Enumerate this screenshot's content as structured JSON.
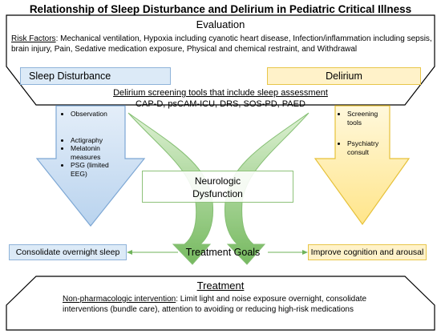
{
  "title": "Relationship of Sleep Disturbance and Delirium in Pediatric Critical Illness",
  "evaluation": {
    "heading": "Evaluation",
    "risk_label": "Risk Factors",
    "risk_text": ": Mechanical ventilation, Hypoxia including cyanotic heart disease, Infection/inflammation including sepsis, brain injury, Pain, Sedative medication exposure, Physical and chemical restraint, and Withdrawal"
  },
  "sleep_disturbance": {
    "label": "Sleep Disturbance",
    "bullets": [
      "Observation",
      "Actigraphy",
      "Melatonin measures",
      "PSG (limited EEG)"
    ],
    "color": "#dceaf7"
  },
  "delirium": {
    "label": "Delirium",
    "bullets": [
      "Screening tools",
      "Psychiatry consult"
    ],
    "color": "#fff2c9"
  },
  "screening": {
    "heading": "Delirium screening tools that include sleep assessment",
    "tools": "CAP-D, psCAM-ICU, DRS, SOS-PD, PAED"
  },
  "neurologic": {
    "line1": "Neurologic",
    "line2": "Dysfunction"
  },
  "treatment_goals": {
    "label": "Treatment Goals",
    "left": "Consolidate overnight sleep",
    "right": "Improve cognition and arousal"
  },
  "treatment": {
    "heading": "Treatment",
    "label": "Non-pharmacologic intervention",
    "text": ": Limit light and noise exposure overnight, consolidate interventions (bundle care), attention to avoiding or reducing high-risk medications"
  },
  "colors": {
    "blue_fill": "#d5e6f5",
    "blue_stroke": "#7da7d4",
    "yellow_fill": "#fff0bf",
    "yellow_stroke": "#e6c13a",
    "green": "#6fb35a"
  }
}
